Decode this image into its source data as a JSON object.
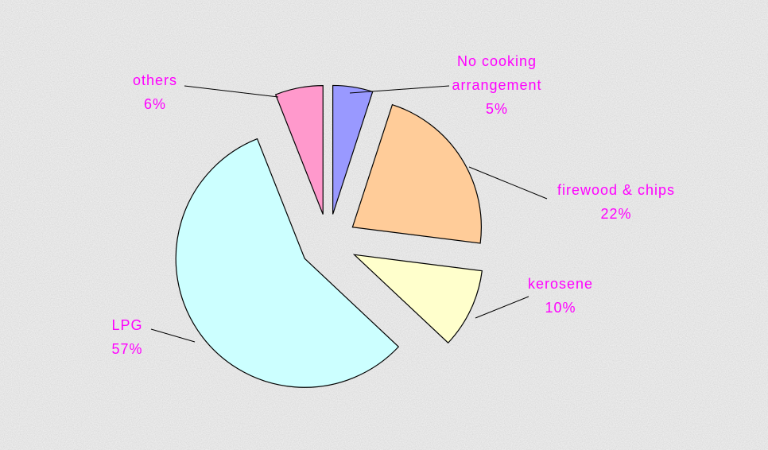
{
  "chart_data": {
    "type": "pie",
    "categories": [
      "No cooking arrangement",
      "firewood & chips",
      "kerosene",
      "LPG",
      "others"
    ],
    "values": [
      5,
      22,
      10,
      57,
      6
    ],
    "value_labels": [
      "5%",
      "22%",
      "10%",
      "57%",
      "6%"
    ],
    "colors": [
      "#9999ff",
      "#ffcc99",
      "#ffffcc",
      "#ccffff",
      "#ff99cc"
    ]
  }
}
